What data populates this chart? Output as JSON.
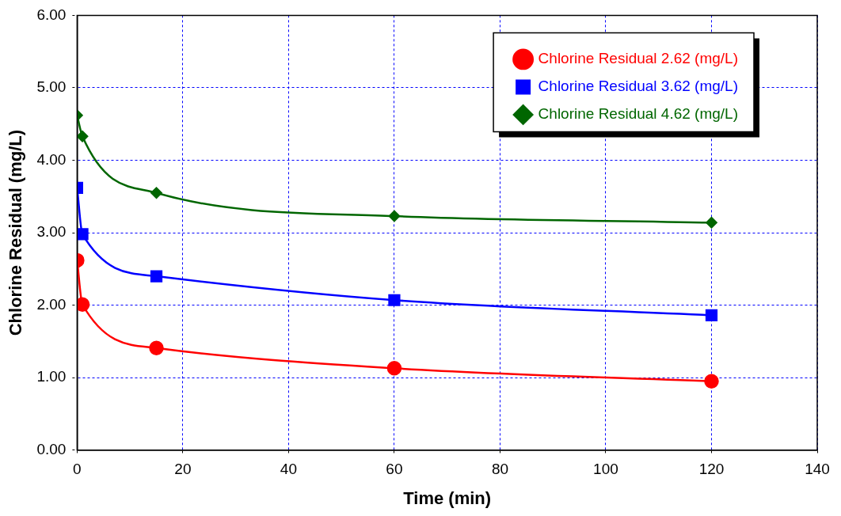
{
  "chart_data": {
    "type": "line",
    "xlabel": "Time (min)",
    "ylabel": "Chlorine Residual (mg/L)",
    "xlim": [
      0,
      140
    ],
    "xticks": [
      0,
      20,
      40,
      60,
      80,
      100,
      120,
      140
    ],
    "ylim": [
      0,
      6
    ],
    "yticks": [
      {
        "value": 0,
        "label": "0.00"
      },
      {
        "value": 1,
        "label": "1.00"
      },
      {
        "value": 2,
        "label": "2.00"
      },
      {
        "value": 3,
        "label": "3.00"
      },
      {
        "value": 4,
        "label": "4.00"
      },
      {
        "value": 5,
        "label": "5.00"
      },
      {
        "value": 6,
        "label": "6.00"
      }
    ],
    "x": [
      0,
      1,
      15,
      60,
      120
    ],
    "grid": true,
    "legend": "top right",
    "line_style": "solid",
    "series": [
      {
        "name": "Chlorine Residual 2.62 (mg/L)",
        "color": "#ff0000",
        "marker": "circle",
        "values": [
          2.62,
          2.01,
          1.41,
          1.13,
          0.95
        ]
      },
      {
        "name": "Chlorine Residual 3.62 (mg/L)",
        "color": "#0000ff",
        "marker": "square",
        "values": [
          3.62,
          2.98,
          2.4,
          2.07,
          1.86
        ]
      },
      {
        "name": "Chlorine Residual 4.62 (mg/L)",
        "color": "#006600",
        "marker": "diamond",
        "values": [
          4.62,
          4.33,
          3.55,
          3.23,
          3.14
        ]
      }
    ]
  }
}
